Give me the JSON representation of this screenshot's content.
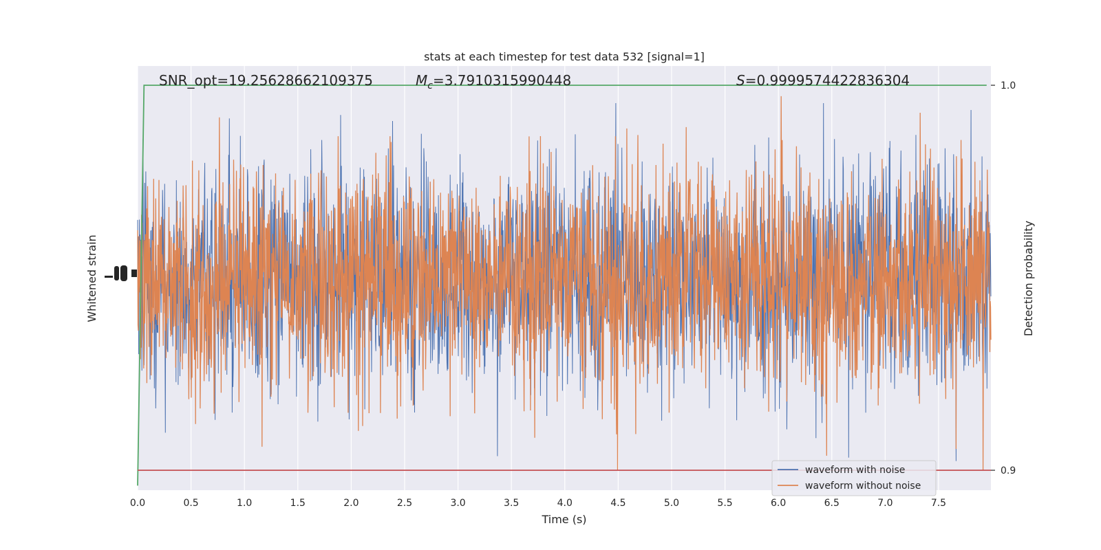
{
  "chart_data": {
    "type": "line",
    "title": "stats at each timestep for test data 532 [signal=1]",
    "xlabel": "Time (s)",
    "ylabel_left": "Whitened strain",
    "ylabel_right": "Detection probability",
    "xlim": [
      0,
      7.99
    ],
    "x_ticks": [
      "0.0",
      "0.5",
      "1.0",
      "1.5",
      "2.0",
      "2.5",
      "3.0",
      "3.5",
      "4.0",
      "4.5",
      "5.0",
      "5.5",
      "6.0",
      "6.5",
      "7.0",
      "7.5"
    ],
    "y_right_lim": [
      0.895,
      1.0
    ],
    "y_right_ticks": [
      "0.9",
      "1.0"
    ],
    "grid": true,
    "legend_position": "lower-right",
    "annotations": {
      "snr": "SNR_opt=19.25628662109375",
      "mc_symbol": "M",
      "mc_sub": "c",
      "mc_value": "=3.7910315990448",
      "s_symbol": "S",
      "s_value": "=0.9999574422836304"
    },
    "series": [
      {
        "name": "waveform with noise",
        "color": "#4c72b0",
        "axis": "left",
        "values": "noise-like whitened strain, overlapped by orange"
      },
      {
        "name": "waveform without noise",
        "color": "#dd8452",
        "axis": "left",
        "amplitude_relative": 1.0
      },
      {
        "color": "#55a868",
        "axis": "right",
        "x": [
          0.0,
          0.06,
          0.1,
          0.2,
          1.0,
          2.0,
          3.0,
          4.0,
          5.0,
          6.0,
          7.0,
          7.95
        ],
        "y": [
          0.896,
          1.0,
          1.0,
          1.0,
          1.0,
          1.0,
          1.0,
          1.0,
          1.0,
          1.0,
          1.0,
          1.0
        ]
      },
      {
        "color": "#c44e52",
        "axis": "right",
        "x": [
          0.0,
          7.99
        ],
        "y": [
          0.9,
          0.9
        ]
      }
    ]
  }
}
